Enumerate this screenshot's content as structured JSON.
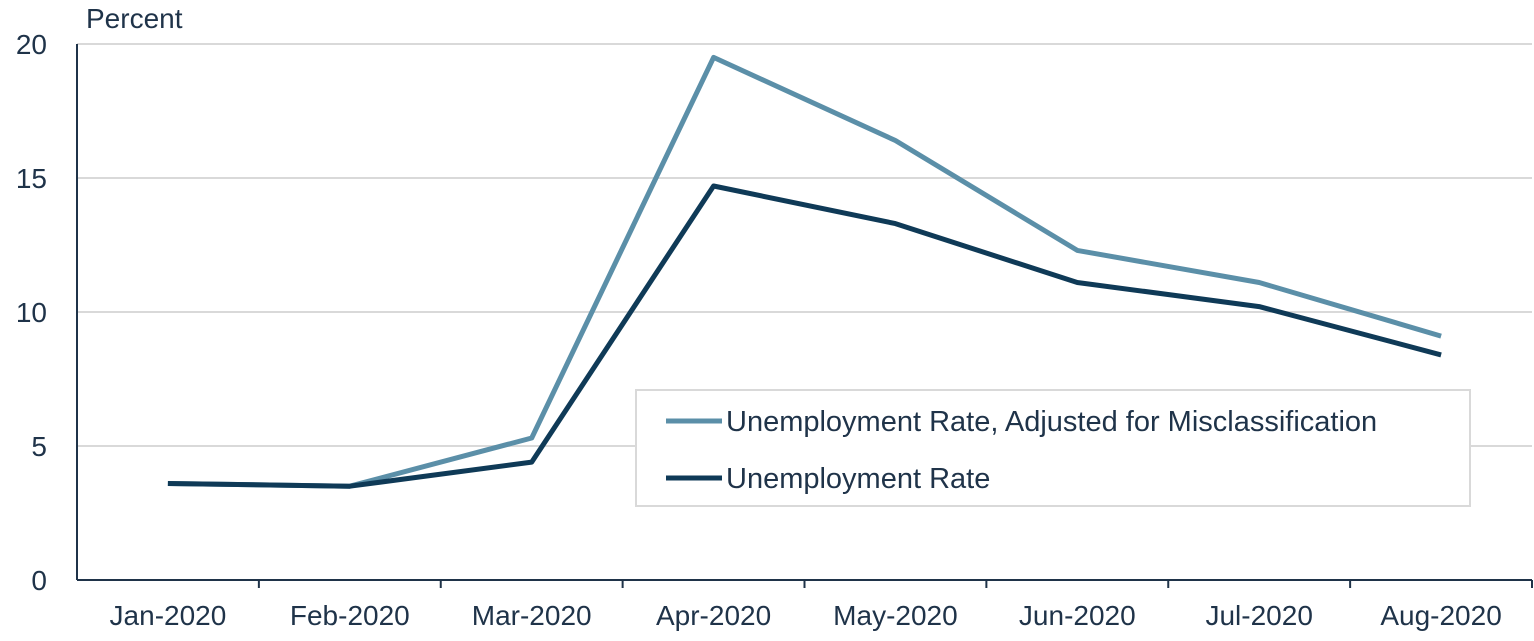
{
  "chart_data": {
    "type": "line",
    "title": "",
    "ylabel": "Percent",
    "xlabel": "",
    "categories": [
      "Jan-2020",
      "Feb-2020",
      "Mar-2020",
      "Apr-2020",
      "May-2020",
      "Jun-2020",
      "Jul-2020",
      "Aug-2020"
    ],
    "ylim": [
      0,
      20
    ],
    "yticks": [
      0,
      5,
      10,
      15,
      20
    ],
    "ytick_labels": [
      "0",
      "5",
      "10",
      "15",
      "20"
    ],
    "grid": "horizontal",
    "legend_position": "bottom-right",
    "series": [
      {
        "name": "Unemployment Rate, Adjusted for Misclassification",
        "color": "#5b8fa8",
        "values": [
          3.6,
          3.5,
          5.3,
          19.5,
          16.4,
          12.3,
          11.1,
          9.1
        ]
      },
      {
        "name": "Unemployment Rate",
        "color": "#0f3a57",
        "values": [
          3.6,
          3.5,
          4.4,
          14.7,
          13.3,
          11.1,
          10.2,
          8.4
        ]
      }
    ]
  }
}
